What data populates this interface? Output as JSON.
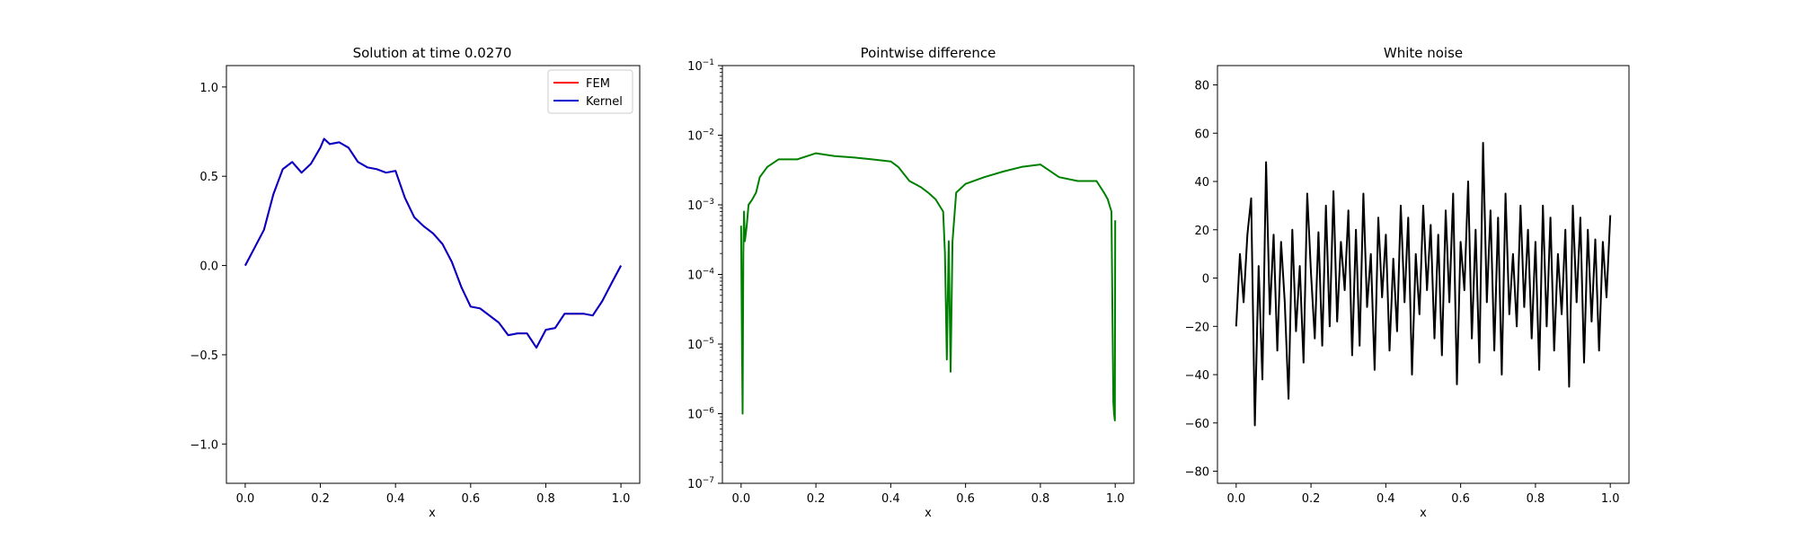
{
  "chart_data": [
    {
      "type": "line",
      "title": "Solution at time 0.0270",
      "xlabel": "x",
      "ylabel": "",
      "xlim": [
        -0.05,
        1.05
      ],
      "ylim": [
        -1.22,
        1.12
      ],
      "yscale": "linear",
      "grid": false,
      "legend_placement": "top-right",
      "x_ticks": [
        0.0,
        0.2,
        0.4,
        0.6,
        0.8,
        1.0
      ],
      "x_tick_labels": [
        "0.0",
        "0.2",
        "0.4",
        "0.6",
        "0.8",
        "1.0"
      ],
      "y_ticks": [
        -1.0,
        -0.5,
        0.0,
        0.5,
        1.0
      ],
      "y_tick_labels": [
        "−1.0",
        "−0.5",
        "0.0",
        "0.5",
        "1.0"
      ],
      "x": [
        0.0,
        0.025,
        0.05,
        0.075,
        0.1,
        0.125,
        0.15,
        0.175,
        0.2,
        0.21,
        0.225,
        0.25,
        0.275,
        0.3,
        0.325,
        0.35,
        0.375,
        0.4,
        0.425,
        0.45,
        0.475,
        0.5,
        0.525,
        0.55,
        0.575,
        0.6,
        0.625,
        0.65,
        0.675,
        0.7,
        0.725,
        0.75,
        0.775,
        0.8,
        0.825,
        0.85,
        0.875,
        0.9,
        0.925,
        0.95,
        0.975,
        1.0
      ],
      "series": [
        {
          "name": "FEM",
          "color": "#ff0000",
          "values": [
            0.0,
            0.1,
            0.2,
            0.4,
            0.54,
            0.58,
            0.52,
            0.57,
            0.66,
            0.71,
            0.68,
            0.69,
            0.66,
            0.58,
            0.55,
            0.54,
            0.52,
            0.53,
            0.38,
            0.27,
            0.22,
            0.18,
            0.12,
            0.02,
            -0.12,
            -0.23,
            -0.24,
            -0.28,
            -0.32,
            -0.39,
            -0.38,
            -0.38,
            -0.46,
            -0.36,
            -0.35,
            -0.27,
            -0.27,
            -0.27,
            -0.28,
            -0.2,
            -0.1,
            0.0
          ]
        },
        {
          "name": "Kernel",
          "color": "#0000cc",
          "values": [
            0.0,
            0.1,
            0.2,
            0.4,
            0.54,
            0.58,
            0.52,
            0.57,
            0.66,
            0.71,
            0.68,
            0.69,
            0.66,
            0.58,
            0.55,
            0.54,
            0.52,
            0.53,
            0.38,
            0.27,
            0.22,
            0.18,
            0.12,
            0.02,
            -0.12,
            -0.23,
            -0.24,
            -0.28,
            -0.32,
            -0.39,
            -0.38,
            -0.38,
            -0.46,
            -0.36,
            -0.35,
            -0.27,
            -0.27,
            -0.27,
            -0.28,
            -0.2,
            -0.1,
            0.0
          ]
        }
      ]
    },
    {
      "type": "line",
      "title": "Pointwise difference",
      "xlabel": "x",
      "ylabel": "",
      "xlim": [
        -0.05,
        1.05
      ],
      "ylim": [
        1e-07,
        0.1
      ],
      "yscale": "log",
      "grid": false,
      "x_ticks": [
        0.0,
        0.2,
        0.4,
        0.6,
        0.8,
        1.0
      ],
      "x_tick_labels": [
        "0.0",
        "0.2",
        "0.4",
        "0.6",
        "0.8",
        "1.0"
      ],
      "y_ticks": [
        1e-07,
        1e-06,
        1e-05,
        0.0001,
        0.001,
        0.01,
        0.1
      ],
      "y_tick_labels": [
        {
          "base": "10",
          "exp": "−7"
        },
        {
          "base": "10",
          "exp": "−6"
        },
        {
          "base": "10",
          "exp": "−5"
        },
        {
          "base": "10",
          "exp": "−4"
        },
        {
          "base": "10",
          "exp": "−3"
        },
        {
          "base": "10",
          "exp": "−2"
        },
        {
          "base": "10",
          "exp": "−1"
        }
      ],
      "x": [
        0.0,
        0.002,
        0.004,
        0.006,
        0.008,
        0.01,
        0.015,
        0.02,
        0.03,
        0.04,
        0.05,
        0.07,
        0.1,
        0.15,
        0.2,
        0.25,
        0.3,
        0.35,
        0.4,
        0.42,
        0.45,
        0.48,
        0.5,
        0.52,
        0.54,
        0.545,
        0.55,
        0.555,
        0.56,
        0.565,
        0.575,
        0.6,
        0.65,
        0.7,
        0.75,
        0.8,
        0.85,
        0.9,
        0.95,
        0.97,
        0.98,
        0.99,
        0.995,
        0.997,
        0.999,
        1.0
      ],
      "series": [
        {
          "name": "",
          "color": "#008000",
          "values": [
            0.0005,
            1.5e-05,
            1e-06,
            0.0002,
            0.0008,
            0.0003,
            0.0005,
            0.001,
            0.0012,
            0.0015,
            0.0025,
            0.0035,
            0.0045,
            0.0045,
            0.0055,
            0.005,
            0.0048,
            0.0045,
            0.0042,
            0.0035,
            0.0022,
            0.0018,
            0.0015,
            0.0012,
            0.0008,
            0.0002,
            6e-06,
            0.0003,
            4e-06,
            0.0003,
            0.0015,
            0.002,
            0.0025,
            0.003,
            0.0035,
            0.0038,
            0.0025,
            0.0022,
            0.0022,
            0.0015,
            0.0012,
            0.0008,
            1.5e-06,
            1e-06,
            8e-07,
            0.0006
          ]
        }
      ]
    },
    {
      "type": "line",
      "title": "White noise",
      "xlabel": "x",
      "ylabel": "",
      "xlim": [
        -0.05,
        1.05
      ],
      "ylim": [
        -85,
        88
      ],
      "yscale": "linear",
      "grid": false,
      "x_ticks": [
        0.0,
        0.2,
        0.4,
        0.6,
        0.8,
        1.0
      ],
      "x_tick_labels": [
        "0.0",
        "0.2",
        "0.4",
        "0.6",
        "0.8",
        "1.0"
      ],
      "y_ticks": [
        -80,
        -60,
        -40,
        -20,
        0,
        20,
        40,
        60,
        80
      ],
      "y_tick_labels": [
        "−80",
        "−60",
        "−40",
        "−20",
        "0",
        "20",
        "40",
        "60",
        "80"
      ],
      "x": [
        0.0,
        0.01,
        0.02,
        0.03,
        0.04,
        0.05,
        0.06,
        0.07,
        0.08,
        0.09,
        0.1,
        0.11,
        0.12,
        0.13,
        0.14,
        0.15,
        0.16,
        0.17,
        0.18,
        0.19,
        0.2,
        0.21,
        0.22,
        0.23,
        0.24,
        0.25,
        0.26,
        0.27,
        0.28,
        0.29,
        0.3,
        0.31,
        0.32,
        0.33,
        0.34,
        0.35,
        0.36,
        0.37,
        0.38,
        0.39,
        0.4,
        0.41,
        0.42,
        0.43,
        0.44,
        0.45,
        0.46,
        0.47,
        0.48,
        0.49,
        0.5,
        0.51,
        0.52,
        0.53,
        0.54,
        0.55,
        0.56,
        0.57,
        0.58,
        0.59,
        0.6,
        0.61,
        0.62,
        0.63,
        0.64,
        0.65,
        0.66,
        0.67,
        0.68,
        0.69,
        0.7,
        0.71,
        0.72,
        0.73,
        0.74,
        0.75,
        0.76,
        0.77,
        0.78,
        0.79,
        0.8,
        0.81,
        0.82,
        0.83,
        0.84,
        0.85,
        0.86,
        0.87,
        0.88,
        0.89,
        0.9,
        0.91,
        0.92,
        0.93,
        0.94,
        0.95,
        0.96,
        0.97,
        0.98,
        0.99,
        1.0
      ],
      "series": [
        {
          "name": "",
          "color": "#000000",
          "values": [
            -20,
            10,
            -10,
            18,
            33,
            -61,
            5,
            -42,
            48,
            -15,
            18,
            -30,
            15,
            -10,
            -50,
            20,
            -22,
            5,
            -35,
            35,
            2,
            -25,
            19,
            -28,
            30,
            -20,
            36,
            -18,
            15,
            -5,
            28,
            -32,
            20,
            -28,
            35,
            -12,
            10,
            -38,
            25,
            -8,
            18,
            -30,
            8,
            -22,
            30,
            -10,
            25,
            -40,
            10,
            -15,
            30,
            -5,
            22,
            -25,
            18,
            -32,
            28,
            -10,
            35,
            -44,
            15,
            -5,
            40,
            -25,
            20,
            -35,
            56,
            -10,
            28,
            -30,
            25,
            -40,
            35,
            -15,
            10,
            -20,
            30,
            -12,
            20,
            -25,
            15,
            -38,
            30,
            -20,
            25,
            -30,
            10,
            -15,
            20,
            -45,
            30,
            -10,
            25,
            -35,
            20,
            -18,
            16,
            -30,
            15,
            -8,
            26
          ]
        }
      ]
    }
  ]
}
